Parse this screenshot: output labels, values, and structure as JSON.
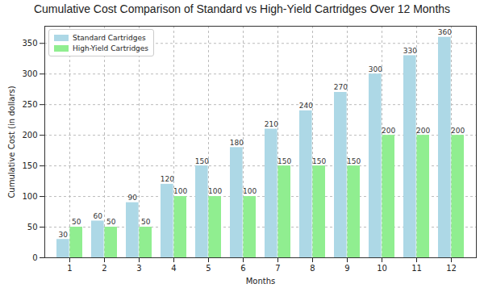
{
  "chart_data": {
    "type": "bar",
    "title": "Cumulative Cost Comparison of Standard vs High-Yield Cartridges Over 12 Months",
    "x_label": "Months",
    "y_label": "Cumulative Cost (in dollars)",
    "categories": [
      1,
      2,
      3,
      4,
      5,
      6,
      7,
      8,
      9,
      10,
      11,
      12
    ],
    "series": [
      {
        "name": "Standard Cartridges",
        "color": "#add8e6",
        "values": [
          30,
          60,
          90,
          120,
          150,
          180,
          210,
          240,
          270,
          300,
          330,
          360
        ]
      },
      {
        "name": "High-Yield Cartridges",
        "color": "#90ee90",
        "values": [
          50,
          50,
          50,
          100,
          100,
          100,
          150,
          150,
          150,
          200,
          200,
          200
        ]
      }
    ],
    "ylim": [
      0,
      378
    ],
    "yticks": [
      0,
      50,
      100,
      150,
      200,
      250,
      300,
      350
    ],
    "grid": true,
    "legend": "upper left",
    "data_labels": true
  }
}
